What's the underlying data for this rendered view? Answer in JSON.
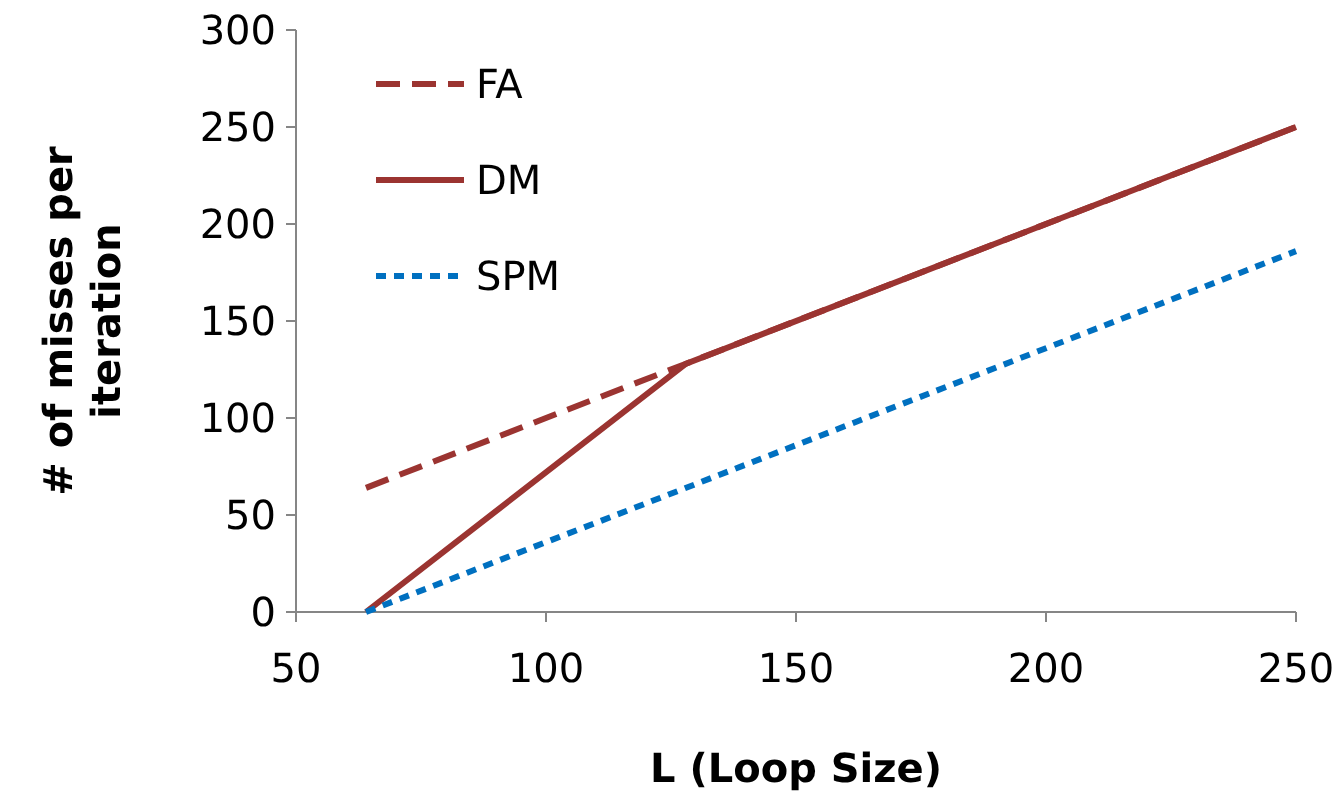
{
  "chart_data": {
    "type": "line",
    "xlabel": "L (Loop Size)",
    "ylabel": "# of misses per iteration",
    "xlim": [
      50,
      250
    ],
    "xticks": [
      50,
      100,
      150,
      200,
      250
    ],
    "ylim": [
      0,
      300
    ],
    "yticks": [
      0,
      50,
      100,
      150,
      200,
      250,
      300
    ],
    "grid": false,
    "legend": "top left",
    "series": [
      {
        "name": "FA",
        "color": "#9b3431",
        "line_style": "dashed",
        "x": [
          64,
          128,
          250
        ],
        "values": [
          64,
          128,
          250
        ]
      },
      {
        "name": "DM",
        "color": "#9b3431",
        "line_style": "solid",
        "x": [
          64,
          128,
          250
        ],
        "values": [
          0,
          128,
          250
        ]
      },
      {
        "name": "SPM",
        "color": "#0070c0",
        "line_style": "dotted",
        "x": [
          64,
          250
        ],
        "values": [
          0,
          186
        ]
      }
    ]
  }
}
